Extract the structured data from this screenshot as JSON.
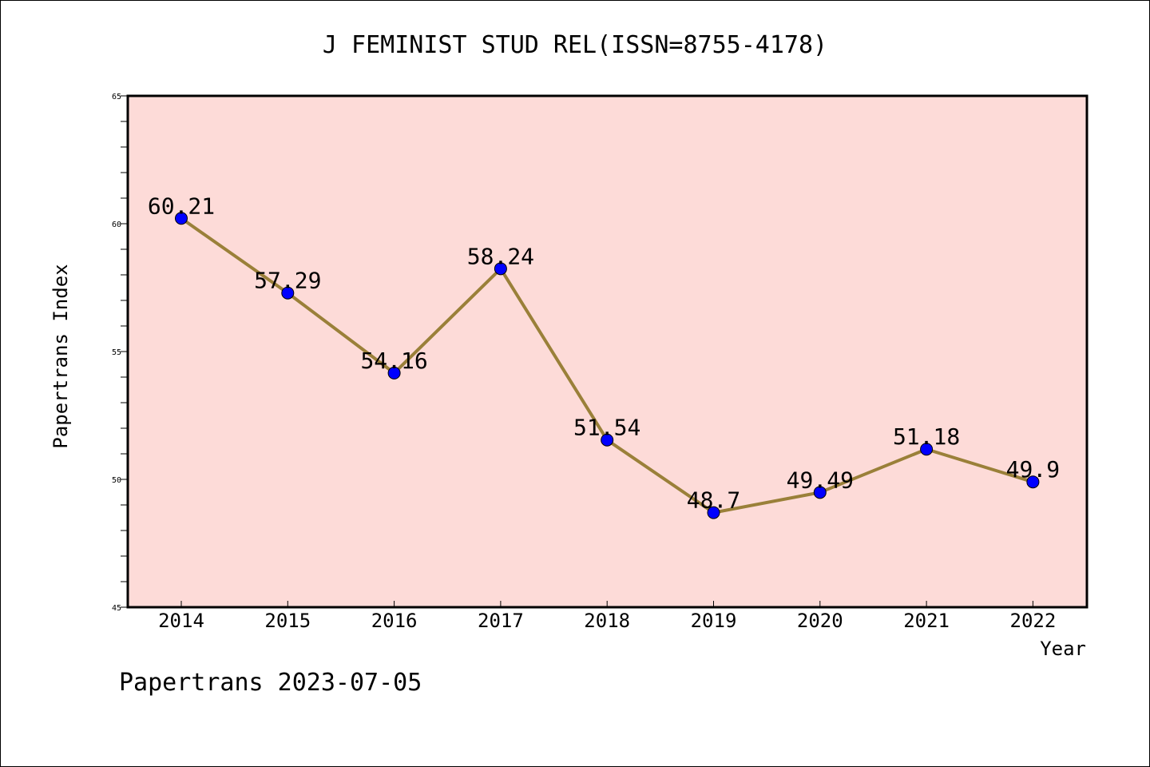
{
  "chart_data": {
    "type": "line",
    "title": "J FEMINIST STUD REL(ISSN=8755-4178)",
    "xlabel": "Year",
    "ylabel": "Papertrans Index",
    "x": [
      "2014",
      "2015",
      "2016",
      "2017",
      "2018",
      "2019",
      "2020",
      "2021",
      "2022"
    ],
    "values": [
      60.21,
      57.29,
      54.16,
      58.24,
      51.54,
      48.7,
      49.49,
      51.18,
      49.9
    ],
    "data_labels": [
      "60.21",
      "57.29",
      "54.16",
      "58.24",
      "51.54",
      "48.7",
      "49.49",
      "51.18",
      "49.9"
    ],
    "ylim": [
      45,
      65
    ],
    "yticks": [
      "45",
      "50",
      "55",
      "60",
      "65"
    ],
    "grid": false,
    "colors": {
      "plot_background": "#fddbd8",
      "line": "#9a8039",
      "marker": "#0000ff"
    }
  },
  "footer": {
    "text": "Papertrans 2023-07-05"
  }
}
